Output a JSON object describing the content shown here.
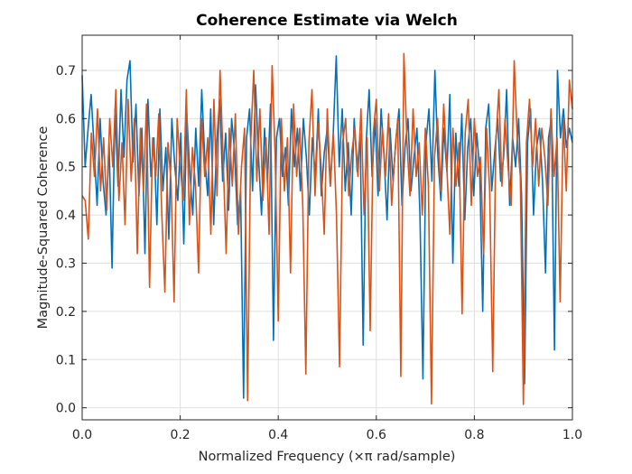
{
  "chart_data": {
    "type": "line",
    "title": "Coherence Estimate via Welch",
    "xlabel": "Normalized Frequency (×π rad/sample)",
    "ylabel": "Magnitude-Squared Coherence",
    "xlim": [
      0,
      1
    ],
    "ylim": [
      -0.025,
      0.773
    ],
    "xticks": [
      0,
      0.2,
      0.4,
      0.6,
      0.8,
      1.0
    ],
    "xtick_labels": [
      "0.0",
      "0.2",
      "0.4",
      "0.6",
      "0.8",
      "1.0"
    ],
    "yticks": [
      0,
      0.1,
      0.2,
      0.3,
      0.4,
      0.5,
      0.6,
      0.7
    ],
    "ytick_labels": [
      "0.0",
      "0.1",
      "0.2",
      "0.3",
      "0.4",
      "0.5",
      "0.6",
      "0.7"
    ],
    "grid": true,
    "legend": null,
    "x_step": 0.00625,
    "series": [
      {
        "name": "series-1",
        "color": "#0072bd",
        "values": [
          0.69,
          0.5,
          0.58,
          0.65,
          0.54,
          0.42,
          0.6,
          0.47,
          0.4,
          0.55,
          0.29,
          0.62,
          0.46,
          0.66,
          0.52,
          0.68,
          0.72,
          0.51,
          0.63,
          0.44,
          0.58,
          0.32,
          0.64,
          0.48,
          0.56,
          0.38,
          0.62,
          0.45,
          0.54,
          0.35,
          0.6,
          0.5,
          0.43,
          0.57,
          0.34,
          0.61,
          0.49,
          0.4,
          0.58,
          0.46,
          0.66,
          0.52,
          0.44,
          0.62,
          0.38,
          0.55,
          0.64,
          0.47,
          0.57,
          0.41,
          0.6,
          0.53,
          0.38,
          0.45,
          0.02,
          0.56,
          0.62,
          0.45,
          0.67,
          0.52,
          0.4,
          0.58,
          0.47,
          0.63,
          0.14,
          0.56,
          0.6,
          0.48,
          0.54,
          0.42,
          0.62,
          0.5,
          0.58,
          0.45,
          0.6,
          0.52,
          0.4,
          0.56,
          0.48,
          0.62,
          0.44,
          0.53,
          0.58,
          0.46,
          0.57,
          0.73,
          0.5,
          0.62,
          0.45,
          0.55,
          0.4,
          0.6,
          0.49,
          0.57,
          0.13,
          0.55,
          0.66,
          0.48,
          0.6,
          0.44,
          0.62,
          0.52,
          0.39,
          0.58,
          0.47,
          0.56,
          0.62,
          0.42,
          0.54,
          0.6,
          0.45,
          0.52,
          0.58,
          0.4,
          0.06,
          0.55,
          0.62,
          0.47,
          0.7,
          0.52,
          0.43,
          0.58,
          0.49,
          0.65,
          0.3,
          0.57,
          0.46,
          0.61,
          0.39,
          0.54,
          0.6,
          0.44,
          0.57,
          0.49,
          0.2,
          0.58,
          0.63,
          0.45,
          0.53,
          0.6,
          0.47,
          0.52,
          0.66,
          0.42,
          0.56,
          0.5,
          0.6,
          0.44,
          0.05,
          0.55,
          0.62,
          0.4,
          0.54,
          0.58,
          0.47,
          0.28,
          0.56,
          0.6,
          0.12,
          0.7,
          0.56,
          0.62,
          0.54,
          0.58,
          0.55
        ]
      },
      {
        "name": "series-2",
        "color": "#d95319",
        "values": [
          0.44,
          0.43,
          0.35,
          0.57,
          0.48,
          0.62,
          0.45,
          0.56,
          0.41,
          0.6,
          0.5,
          0.66,
          0.43,
          0.55,
          0.38,
          0.64,
          0.47,
          0.6,
          0.32,
          0.58,
          0.45,
          0.63,
          0.25,
          0.56,
          0.48,
          0.61,
          0.4,
          0.24,
          0.55,
          0.47,
          0.22,
          0.6,
          0.5,
          0.43,
          0.66,
          0.38,
          0.54,
          0.46,
          0.28,
          0.6,
          0.48,
          0.56,
          0.36,
          0.64,
          0.44,
          0.7,
          0.52,
          0.32,
          0.58,
          0.46,
          0.61,
          0.36,
          0.5,
          0.58,
          0.015,
          0.55,
          0.7,
          0.47,
          0.62,
          0.43,
          0.56,
          0.36,
          0.71,
          0.52,
          0.18,
          0.6,
          0.45,
          0.56,
          0.28,
          0.63,
          0.48,
          0.58,
          0.42,
          0.07,
          0.55,
          0.66,
          0.44,
          0.59,
          0.5,
          0.36,
          0.62,
          0.46,
          0.57,
          0.4,
          0.085,
          0.55,
          0.6,
          0.44,
          0.53,
          0.58,
          0.48,
          0.62,
          0.4,
          0.56,
          0.16,
          0.57,
          0.64,
          0.45,
          0.58,
          0.48,
          0.61,
          0.42,
          0.52,
          0.6,
          0.065,
          0.735,
          0.55,
          0.44,
          0.62,
          0.48,
          0.55,
          0.4,
          0.58,
          0.46,
          0.008,
          0.52,
          0.6,
          0.45,
          0.63,
          0.5,
          0.36,
          0.58,
          0.46,
          0.55,
          0.195,
          0.57,
          0.64,
          0.42,
          0.6,
          0.48,
          0.52,
          0.32,
          0.58,
          0.45,
          0.075,
          0.55,
          0.66,
          0.46,
          0.6,
          0.5,
          0.42,
          0.72,
          0.56,
          0.48,
          0.007,
          0.55,
          0.64,
          0.5,
          0.6,
          0.46,
          0.58,
          0.52,
          0.42,
          0.62,
          0.48,
          0.56,
          0.22,
          0.6,
          0.45,
          0.68,
          0.62
        ]
      }
    ]
  }
}
